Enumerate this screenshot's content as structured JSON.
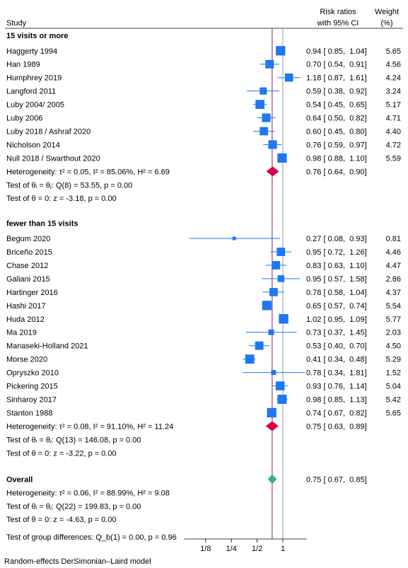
{
  "chart_data": {
    "type": "forest",
    "header": {
      "study": "Study",
      "effect_line1": "Risk ratios",
      "effect_line2": "with 95% CI",
      "weight_line1": "Weight",
      "weight_line2": "(%)"
    },
    "groups": [
      {
        "name": "15 visits or more",
        "studies": [
          {
            "label": "Haggerty 1994",
            "rr": 0.94,
            "lo": 0.85,
            "hi": 1.04,
            "text": "0.94 [ 0.85,  1.04]",
            "weight": 5.65,
            "weight_text": "5.65"
          },
          {
            "label": "Han 1989",
            "rr": 0.7,
            "lo": 0.54,
            "hi": 0.91,
            "text": "0.70 [ 0.54,  0.91]",
            "weight": 4.56,
            "weight_text": "4.56"
          },
          {
            "label": "Humphrey 2019",
            "rr": 1.18,
            "lo": 0.87,
            "hi": 1.61,
            "text": "1.18 [ 0.87,  1.61]",
            "weight": 4.24,
            "weight_text": "4.24"
          },
          {
            "label": "Langford 2011",
            "rr": 0.59,
            "lo": 0.38,
            "hi": 0.92,
            "text": "0.59 [ 0.38,  0.92]",
            "weight": 3.24,
            "weight_text": "3.24"
          },
          {
            "label": "Luby 2004/ 2005",
            "rr": 0.54,
            "lo": 0.45,
            "hi": 0.65,
            "text": "0.54 [ 0.45,  0.65]",
            "weight": 5.17,
            "weight_text": "5.17"
          },
          {
            "label": "Luby 2006",
            "rr": 0.64,
            "lo": 0.5,
            "hi": 0.82,
            "text": "0.64 [ 0.50,  0.82]",
            "weight": 4.71,
            "weight_text": "4.71"
          },
          {
            "label": "Luby 2018 / Ashraf 2020",
            "rr": 0.6,
            "lo": 0.45,
            "hi": 0.8,
            "text": "0.60 [ 0.45,  0.80]",
            "weight": 4.4,
            "weight_text": "4.40"
          },
          {
            "label": "Nicholson 2014",
            "rr": 0.76,
            "lo": 0.59,
            "hi": 0.97,
            "text": "0.76 [ 0.59,  0.97]",
            "weight": 4.72,
            "weight_text": "4.72"
          },
          {
            "label": "Null 2018 / Swarthout 2020",
            "rr": 0.98,
            "lo": 0.88,
            "hi": 1.1,
            "text": "0.98 [ 0.88,  1.10]",
            "weight": 5.59,
            "weight_text": "5.59"
          }
        ],
        "pooled": {
          "rr": 0.76,
          "lo": 0.64,
          "hi": 0.9,
          "text": "0.76 [ 0.64,  0.90]"
        },
        "heterogeneity": "Heterogeneity: τ² = 0.05, I² = 85.06%, H² = 6.69",
        "test_theta_i": "Test of θᵢ = θⱼ: Q(8) = 53.55, p = 0.00",
        "test_theta_0": "Test of θ = 0: z = -3.18, p = 0.00"
      },
      {
        "name": "fewer than 15 visits",
        "studies": [
          {
            "label": "Begum 2020",
            "rr": 0.27,
            "lo": 0.08,
            "hi": 0.93,
            "text": "0.27 [ 0.08,  0.93]",
            "weight": 0.81,
            "weight_text": "0.81"
          },
          {
            "label": "Briceño 2015",
            "rr": 0.95,
            "lo": 0.72,
            "hi": 1.26,
            "text": "0.95 [ 0.72,  1.26]",
            "weight": 4.46,
            "weight_text": "4.46"
          },
          {
            "label": "Chase 2012",
            "rr": 0.83,
            "lo": 0.63,
            "hi": 1.1,
            "text": "0.83 [ 0.63,  1.10]",
            "weight": 4.47,
            "weight_text": "4.47"
          },
          {
            "label": "Galiani 2015",
            "rr": 0.95,
            "lo": 0.57,
            "hi": 1.58,
            "text": "0.95 [ 0.57,  1.58]",
            "weight": 2.86,
            "weight_text": "2.86"
          },
          {
            "label": "Hartinger 2016",
            "rr": 0.78,
            "lo": 0.58,
            "hi": 1.04,
            "text": "0.78 [ 0.58,  1.04]",
            "weight": 4.37,
            "weight_text": "4.37"
          },
          {
            "label": "Hashi 2017",
            "rr": 0.65,
            "lo": 0.57,
            "hi": 0.74,
            "text": "0.65 [ 0.57,  0.74]",
            "weight": 5.54,
            "weight_text": "5.54"
          },
          {
            "label": "Huda 2012",
            "rr": 1.02,
            "lo": 0.95,
            "hi": 1.09,
            "text": "1.02 [ 0.95,  1.09]",
            "weight": 5.77,
            "weight_text": "5.77"
          },
          {
            "label": "Ma 2019",
            "rr": 0.73,
            "lo": 0.37,
            "hi": 1.45,
            "text": "0.73 [ 0.37,  1.45]",
            "weight": 2.03,
            "weight_text": "2.03"
          },
          {
            "label": "Manaseki-Holland 2021",
            "rr": 0.53,
            "lo": 0.4,
            "hi": 0.7,
            "text": "0.53 [ 0.40,  0.70]",
            "weight": 4.5,
            "weight_text": "4.50"
          },
          {
            "label": "Morse 2020",
            "rr": 0.41,
            "lo": 0.34,
            "hi": 0.48,
            "text": "0.41 [ 0.34,  0.48]",
            "weight": 5.29,
            "weight_text": "5.29"
          },
          {
            "label": "Opryszko 2010",
            "rr": 0.78,
            "lo": 0.34,
            "hi": 1.81,
            "text": "0.78 [ 0.34,  1.81]",
            "weight": 1.52,
            "weight_text": "1.52"
          },
          {
            "label": "Pickering 2015",
            "rr": 0.93,
            "lo": 0.76,
            "hi": 1.14,
            "text": "0.93 [ 0.76,  1.14]",
            "weight": 5.04,
            "weight_text": "5.04"
          },
          {
            "label": "Sinharoy 2017",
            "rr": 0.98,
            "lo": 0.85,
            "hi": 1.13,
            "text": "0.98 [ 0.85,  1.13]",
            "weight": 5.42,
            "weight_text": "5.42"
          },
          {
            "label": "Stanton 1988",
            "rr": 0.74,
            "lo": 0.67,
            "hi": 0.82,
            "text": "0.74 [ 0.67,  0.82]",
            "weight": 5.65,
            "weight_text": "5.65"
          }
        ],
        "pooled": {
          "rr": 0.75,
          "lo": 0.63,
          "hi": 0.89,
          "text": "0.75 [ 0.63,  0.89]"
        },
        "heterogeneity": "Heterogeneity: τ² = 0.08, I² = 91.10%, H² = 11.24",
        "test_theta_i": "Test of θᵢ = θⱼ: Q(13) = 146.08, p = 0.00",
        "test_theta_0": "Test of θ = 0: z = -3.22, p = 0.00"
      }
    ],
    "overall": {
      "name": "Overall",
      "rr": 0.75,
      "lo": 0.67,
      "hi": 0.85,
      "text": "0.75 [ 0.67,  0.85]",
      "heterogeneity": "Heterogeneity: τ² = 0.06, I² = 88.99%, H² = 9.08",
      "test_theta_i": "Test of θᵢ = θⱼ: Q(22) = 199.83, p = 0.00",
      "test_theta_0": "Test of θ = 0: z = -4.63, p = 0.00"
    },
    "group_difference_test": "Test of group differences: Q_b(1) = 0.00, p = 0.96",
    "x_axis": {
      "scale": "log",
      "ticks": [
        0.125,
        0.25,
        0.5,
        1
      ],
      "tick_labels": [
        "1/8",
        "1/4",
        "1/2",
        "1"
      ],
      "range": [
        0.07,
        1.9
      ]
    },
    "reference_line": 1,
    "overall_line": 0.75,
    "footnote": "Random-effects DerSimonian–Laird model",
    "colors": {
      "study_marker": "#1f77f4",
      "subgroup_diamond": "#d6004f",
      "overall_diamond": "#2cb97e",
      "overall_line": "#8b1a6b",
      "reference_line": "#9a9ab5"
    }
  }
}
